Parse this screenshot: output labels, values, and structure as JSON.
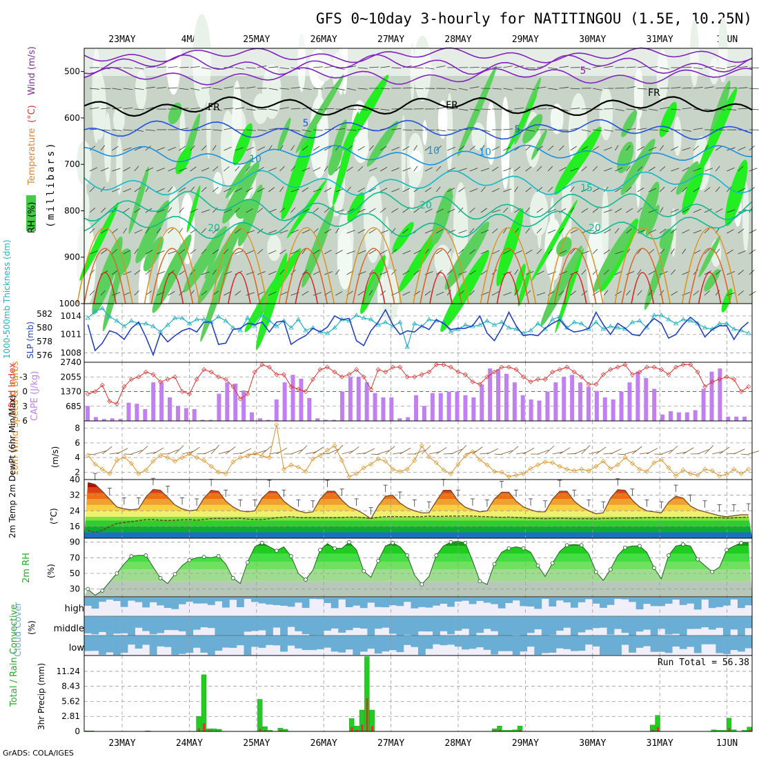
{
  "title": "GFS 0~10day 3-hourly for NATITINGOU (1.5E, 10.25N)",
  "credit": "GrADS: COLA/IGES",
  "dates": [
    "23MAY",
    "24MAY",
    "25MAY",
    "26MAY",
    "27MAY",
    "28MAY",
    "29MAY",
    "30MAY",
    "31MAY",
    "1JUN"
  ],
  "colors": {
    "rh_green": "#22cc22",
    "cape": "#c080f0",
    "lifted": "#e03030",
    "sst_blue": "#2040c0",
    "thick": "#20b0c0",
    "wind10": "#e09020",
    "precip": "#22cc22",
    "conv": "#e03030",
    "cloud": "#6aaed6"
  },
  "chart_data": [
    {
      "id": "upper",
      "type": "heatmap",
      "ylabel_parts": [
        "RH (%)",
        "Temperature",
        "(°C)",
        "Wind (m/s)"
      ],
      "yaxis_label": "(millibars)",
      "yticks": [
        500,
        600,
        700,
        800,
        900,
        1000
      ],
      "ylim": [
        1000,
        450
      ],
      "contour_labels": [
        "5",
        "FR",
        "FR",
        "FR",
        "5",
        "5",
        "10",
        "10",
        "10",
        "15",
        "20",
        "20",
        "20"
      ]
    },
    {
      "id": "thick_slp",
      "type": "line",
      "ylabel_left": "1000-500mb Thickness (dm)",
      "ylabel_right": "SLP (mb)",
      "left_ticks": [
        576,
        578,
        580,
        582
      ],
      "right_ticks": [
        1008,
        1011,
        1014
      ],
      "series": [
        {
          "name": "SLP",
          "axis": "right",
          "values": [
            1012.6,
            1008.4,
            1009.6,
            1011.6,
            1011.2,
            1010.2,
            1012.0,
            1013.0,
            1010.6,
            1007.7,
            1011.2,
            1009.8,
            1010.8,
            1011.6,
            1012.0,
            1011.4,
            1013.0,
            1013.0,
            1009.4,
            1009.6,
            1011.8,
            1012.0,
            1012.8,
            1012.6,
            1013.0,
            1011.4,
            1013.0,
            1013.2,
            1009.4,
            1010.2,
            1010.8,
            1012.0,
            1011.4,
            1012.2,
            1014.0,
            1013.4,
            1013.6,
            1010.0,
            1009.2,
            1011.6,
            1013.0,
            1015.0,
            1012.6,
            1011.0,
            1011.6,
            1011.4,
            1012.4,
            1011.8,
            1013.4,
            1012.8,
            1011.8,
            1012.0,
            1012.0,
            1012.4,
            1014.0,
            1011.2,
            1010.0,
            1012.0,
            1014.6,
            1012.4,
            1010.8,
            1011.0,
            1010.8,
            1012.0,
            1012.8,
            1013.4,
            1012.0,
            1011.4,
            1011.6,
            1012.0,
            1014.6,
            1012.6,
            1011.0,
            1012.8,
            1012.0,
            1011.0,
            1010.8,
            1012.4,
            1013.6,
            1012.8,
            1010.4,
            1011.0,
            1012.6,
            1013.8,
            1012.8,
            1010.6,
            1011.8,
            1012.4,
            1012.4,
            1010.2,
            1012.0,
            1013.0
          ]
        },
        {
          "name": "Thickness",
          "axis": "left",
          "values": [
            581.4,
            582.4,
            582.8,
            581.6,
            581.0,
            580.2,
            581.0,
            580.6,
            580.6,
            580.2,
            579.4,
            580.4,
            581.4,
            581.4,
            580.6,
            581.2,
            581.2,
            580.8,
            581.6,
            581.0,
            580.0,
            579.6,
            581.4,
            580.2,
            581.8,
            581.0,
            580.2,
            581.0,
            580.0,
            581.2,
            579.6,
            580.0,
            579.4,
            579.2,
            580.0,
            581.2,
            581.0,
            581.8,
            581.4,
            581.2,
            580.4,
            580.8,
            580.2,
            580.8,
            577.2,
            580.6,
            580.2,
            581.2,
            581.0,
            580.8,
            579.4,
            579.8,
            580.4,
            580.2,
            580.4,
            581.0,
            580.4,
            580.8,
            580.0,
            579.8,
            579.2,
            579.6,
            580.6,
            579.8,
            581.2,
            581.6,
            580.0,
            580.8,
            580.6,
            579.8,
            580.8,
            579.8,
            580.2,
            580.0,
            579.8,
            580.8,
            581.0,
            580.0,
            581.8,
            581.8,
            581.2,
            580.6,
            581.2,
            581.0,
            580.6,
            580.0,
            579.8,
            580.6,
            580.6,
            579.8,
            579.6,
            579.2
          ]
        }
      ]
    },
    {
      "id": "cape_li",
      "type": "bar",
      "ylabel_left": "Lifted Index",
      "ylabel_right": "CAPE (J/kg)",
      "left_ticks": [
        6,
        3,
        0,
        -3
      ],
      "right_ticks": [
        685,
        1370,
        2055,
        2740
      ],
      "series": [
        {
          "name": "CAPE",
          "axis": "right",
          "values": [
            700,
            180,
            90,
            120,
            90,
            850,
            800,
            550,
            1800,
            1800,
            1100,
            700,
            600,
            550,
            50,
            50,
            1270,
            1800,
            1740,
            1420,
            400,
            120,
            50,
            1000,
            1800,
            2150,
            1970,
            1070,
            120,
            50,
            50,
            1370,
            2055,
            2055,
            1800,
            1300,
            1100,
            1100,
            120,
            170,
            1200,
            700,
            1300,
            1300,
            1370,
            1370,
            1200,
            1100,
            1700,
            2450,
            2410,
            2200,
            1800,
            1200,
            1000,
            950,
            1370,
            1800,
            2055,
            2150,
            1800,
            1600,
            1400,
            1100,
            1000,
            1370,
            1800,
            2300,
            2000,
            1500,
            300,
            450,
            400,
            400,
            500,
            1500,
            2300,
            2450,
            200,
            200,
            200
          ],
          "x_start": 0
        },
        {
          "name": "Lifted Index",
          "axis": "left",
          "values": [
            0.5,
            0.0,
            -1.3,
            2.0,
            2.5,
            -1.0,
            -2.5,
            -3.0,
            -4.0,
            -3.5,
            -2.0,
            -2.5,
            -3.0,
            0.0,
            0.5,
            -2.5,
            -4.5,
            -4.0,
            -3.0,
            -2.5,
            -1.0,
            1.5,
            0.5,
            -4.0,
            -5.5,
            -5.0,
            -3.5,
            -3.5,
            -1.0,
            -0.5,
            0.0,
            -2.5,
            -4.5,
            -5.0,
            -4.0,
            -3.0,
            -3.5,
            -4.5,
            -3.0,
            -0.5,
            -4.5,
            -4.0,
            -5.0,
            -5.0,
            -3.0,
            -3.0,
            -3.5,
            -4.0,
            -5.5,
            -5.5,
            -5.0,
            -4.0,
            -3.5,
            -2.0,
            -1.5,
            -3.0,
            -4.0,
            -5.0,
            -5.0,
            -4.5,
            -3.0,
            -2.0,
            -2.5,
            -2.5,
            -4.0,
            -4.5,
            -5.0,
            -4.0,
            -3.0,
            -1.5,
            -1.5,
            -3.5,
            -4.5,
            -5.0,
            -5.5,
            -3.5,
            -4.0,
            -5.0,
            -5.0,
            -4.5,
            -3.5,
            -5.0,
            -5.5,
            -5.5,
            -4.0,
            -1.0,
            -2.0,
            -2.5,
            -3.0,
            -2.5,
            0.0,
            -1.0
          ]
        }
      ]
    },
    {
      "id": "wind10",
      "type": "line",
      "ylabel": "10m Wind Speed & Barbs",
      "unit": "(m/s)",
      "yticks": [
        2,
        4,
        6,
        8
      ],
      "ylim": [
        1,
        9
      ],
      "values": [
        4.3,
        3.1,
        2.4,
        1.8,
        3.6,
        4.1,
        3.2,
        1.8,
        2.3,
        3.5,
        4.3,
        4.0,
        3.5,
        4.0,
        4.5,
        4.0,
        3.6,
        2.8,
        2.0,
        1.8,
        3.4,
        4.0,
        4.2,
        4.6,
        4.2,
        4.0,
        8.5,
        2.4,
        3.0,
        2.7,
        2.1,
        3.8,
        4.3,
        5.0,
        5.6,
        3.6,
        1.4,
        1.8,
        2.6,
        3.1,
        3.8,
        3.5,
        2.4,
        2.1,
        2.4,
        3.6,
        5.6,
        4.1,
        3.3,
        2.3,
        1.8,
        3.1,
        4.2,
        4.8,
        3.7,
        3.0,
        2.1,
        2.0,
        1.4,
        1.6,
        1.8,
        2.5,
        3.0,
        3.4,
        3.3,
        2.8,
        2.4,
        2.2,
        2.4,
        2.2,
        2.8,
        3.5,
        2.5,
        3.0,
        4.0,
        3.2,
        2.4,
        2.1,
        3.3,
        3.7,
        2.6,
        1.5,
        2.3,
        1.8,
        1.6,
        2.4,
        2.2,
        1.5,
        1.7,
        2.4,
        1.8,
        2.4
      ]
    },
    {
      "id": "temp2m",
      "type": "area",
      "ylabel": "2m Temp 2m DewPt (6hr Min/Max)",
      "unit": "(°C)",
      "yticks": [
        16,
        24,
        32,
        40
      ],
      "ylim": [
        10,
        40
      ],
      "temp": [
        38.5,
        37.5,
        34,
        30,
        26,
        25,
        24.5,
        25,
        31,
        35,
        34.5,
        31,
        27,
        25,
        24,
        24.5,
        30.5,
        34.5,
        34,
        29,
        26,
        24,
        23.5,
        24,
        30.5,
        34,
        33.8,
        29,
        26,
        24,
        23,
        23.5,
        30,
        34,
        34,
        29.5,
        26,
        24.5,
        22.5,
        20,
        26.5,
        31.5,
        32,
        28,
        25.5,
        24,
        23,
        23,
        29,
        34.5,
        34.5,
        29,
        25.8,
        24.5,
        23.5,
        24,
        30,
        33.5,
        33.5,
        29,
        26,
        24.5,
        23.5,
        23.5,
        30,
        34,
        34,
        29,
        26,
        24,
        22.5,
        23,
        30.5,
        34.8,
        34.5,
        29.5,
        26,
        24,
        23.5,
        23,
        28.5,
        31.5,
        30.5,
        26.5,
        24.5,
        23.5,
        22.5,
        21.5,
        21,
        21.5,
        22,
        22
      ],
      "dew": [
        14,
        13,
        14,
        16,
        17.5,
        18,
        18.5,
        19,
        19.5,
        19.5,
        19.2,
        19,
        19.2,
        19.4,
        19.5,
        19.2,
        19.6,
        20,
        20.1,
        20,
        20.1,
        20.2,
        19.8,
        19.5,
        19.5,
        20,
        20.5,
        20.8,
        21,
        20.6,
        20.5,
        20.5,
        20.5,
        20.5,
        20.5,
        20.6,
        20.8,
        20.8,
        20.5,
        20.1,
        20.7,
        21,
        21.1,
        21,
        21,
        21,
        21,
        21.3,
        21.1,
        21.2,
        21.3,
        21.3,
        21.4,
        21.3,
        21.1,
        21,
        20.8,
        20.7,
        20.8,
        20.6,
        20.4,
        20.2,
        20.1,
        20,
        20.1,
        20.2,
        20.1,
        20,
        20,
        20,
        19.9,
        20.1,
        20.1,
        20.3,
        20.3,
        20.3,
        20.4,
        20.5,
        20.6,
        20.5,
        20.4,
        20.5,
        20.6,
        20.6,
        20.6,
        20.6,
        20.5,
        20.5,
        20.3,
        20.4,
        20.7,
        20.8
      ]
    },
    {
      "id": "rh2m",
      "type": "area",
      "ylabel": "2m RH",
      "unit": "(%)",
      "yticks": [
        30,
        50,
        70,
        90
      ],
      "ylim": [
        20,
        95
      ],
      "values": [
        30,
        22,
        28,
        39,
        50,
        62,
        72,
        73,
        73,
        58,
        44,
        37,
        49,
        60,
        67,
        70,
        71,
        70,
        72,
        62,
        44,
        37,
        64,
        84,
        89,
        84,
        79,
        84,
        72,
        50,
        42,
        54,
        80,
        88,
        82,
        82,
        90,
        80,
        53,
        45,
        66,
        85,
        89,
        84,
        73,
        48,
        36,
        46,
        73,
        85,
        90,
        91,
        89,
        66,
        40,
        36,
        62,
        77,
        82,
        84,
        82,
        77,
        60,
        46,
        63,
        78,
        86,
        87,
        86,
        75,
        52,
        41,
        55,
        73,
        83,
        85,
        85,
        77,
        57,
        43,
        73,
        85,
        87,
        85,
        68,
        60,
        52,
        58,
        80,
        85,
        89,
        90
      ]
    },
    {
      "id": "cloud",
      "type": "bar",
      "ylabel": "Cloud Cover",
      "unit": "(%)",
      "levels": [
        "high",
        "middle",
        "low"
      ]
    },
    {
      "id": "precip",
      "type": "bar",
      "ylabel": "Total / Rain Convective",
      "axis_label": "3hr Precip (mm)",
      "yticks": [
        0,
        2.81,
        5.62,
        8.43,
        11.24
      ],
      "ylim": [
        0,
        14.2
      ],
      "run_total": "Run Total = 56.38",
      "total": [
        0.1,
        0.1,
        0,
        0,
        0,
        0,
        0,
        0,
        0,
        0,
        0,
        0,
        0.1,
        0,
        0,
        0,
        0,
        0,
        0,
        0,
        0,
        0,
        2.8,
        10.6,
        0.5,
        0.5,
        0.4,
        0,
        0,
        0,
        0,
        0,
        0,
        0,
        6,
        0.9,
        0.2,
        0,
        0.6,
        0.4,
        0,
        0,
        0,
        0,
        0,
        0,
        0,
        0,
        0,
        0,
        0,
        0,
        2.4,
        1,
        4,
        14,
        4,
        0,
        0,
        0,
        0,
        0,
        0,
        0,
        0,
        0,
        0,
        0,
        0,
        0,
        0,
        0,
        0,
        0,
        0,
        0,
        0,
        0,
        0,
        0,
        0.5,
        1,
        0.2,
        0.2,
        0.3,
        1,
        0,
        0,
        0,
        0,
        0,
        0,
        0,
        0,
        0,
        0,
        0,
        0,
        0,
        0,
        0,
        0,
        0,
        0,
        0,
        0,
        0,
        0,
        0,
        0,
        0,
        1.2,
        3,
        0,
        0,
        0,
        0,
        0,
        0,
        0,
        0,
        0,
        0,
        0.3,
        0.2,
        0.2,
        2.5,
        0.3,
        0,
        0.2,
        0.8
      ],
      "convective": [
        0,
        0,
        0,
        0,
        0,
        0,
        0,
        0,
        0,
        0,
        0,
        0,
        0,
        0,
        0,
        0,
        0,
        0,
        0,
        0,
        0,
        0,
        0.6,
        1.5,
        0.2,
        0,
        0,
        0,
        0,
        0,
        0,
        0,
        0,
        0,
        0.5,
        0.2,
        0,
        0,
        0.2,
        0,
        0,
        0,
        0,
        0,
        0,
        0,
        0,
        0,
        0,
        0,
        0,
        0,
        0.8,
        0.3,
        1.3,
        6.2,
        1,
        0,
        0,
        0,
        0,
        0,
        0,
        0,
        0,
        0,
        0,
        0,
        0,
        0,
        0,
        0,
        0,
        0,
        0,
        0,
        0,
        0,
        0,
        0,
        0.2,
        0.3,
        0,
        0,
        0,
        0.3,
        0,
        0,
        0,
        0,
        0,
        0,
        0,
        0,
        0,
        0,
        0,
        0,
        0,
        0,
        0,
        0,
        0,
        0,
        0,
        0,
        0,
        0,
        0,
        0,
        0,
        0.3,
        0.8,
        0,
        0,
        0,
        0,
        0,
        0,
        0,
        0,
        0,
        0,
        0,
        0,
        0,
        0.6,
        0,
        0,
        0,
        0.3
      ]
    }
  ]
}
